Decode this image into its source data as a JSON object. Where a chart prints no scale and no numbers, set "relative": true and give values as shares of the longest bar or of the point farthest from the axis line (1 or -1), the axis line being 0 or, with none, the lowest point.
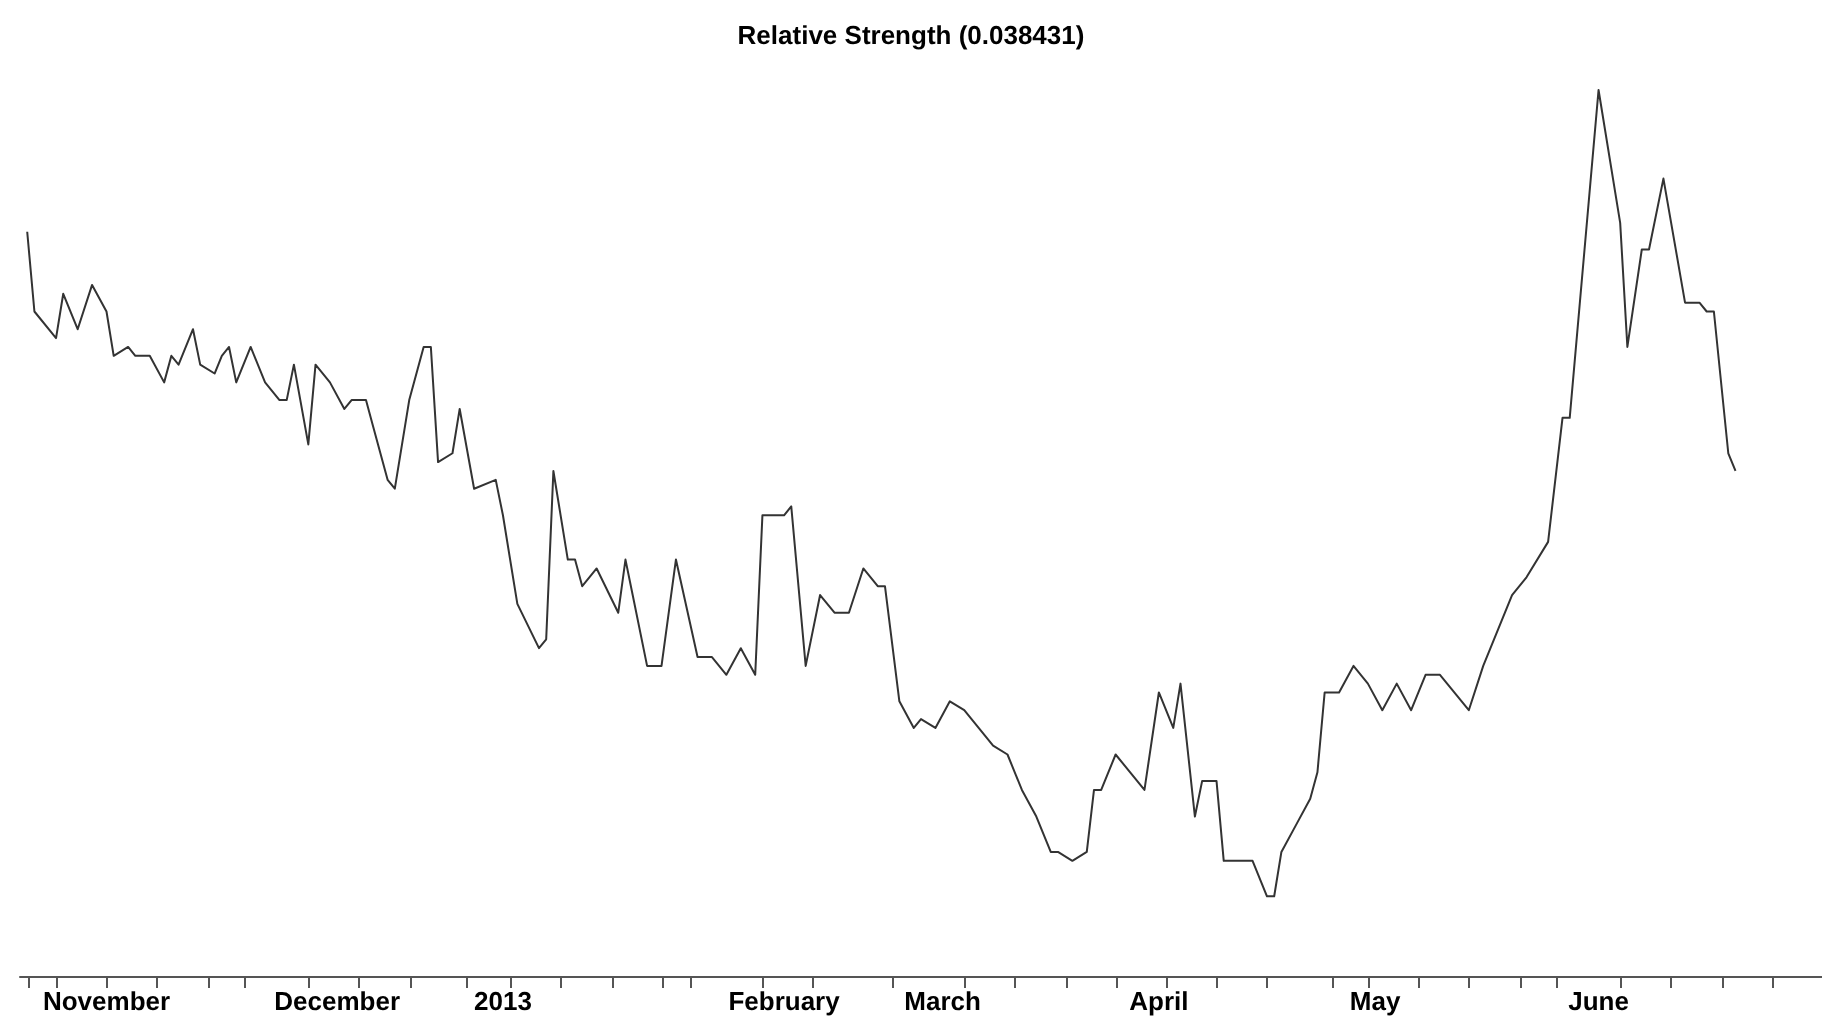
{
  "chart_data": {
    "type": "line",
    "title": "Relative Strength (0.038431)",
    "relative": true,
    "grid": false,
    "xlim": [
      "2012-10-31",
      "2013-07-08"
    ],
    "xticks": [
      {
        "value": "2012-11-12",
        "label": "November"
      },
      {
        "value": "2012-12-14",
        "label": "December"
      },
      {
        "value": "2013-01-06",
        "label": "2013"
      },
      {
        "value": "2013-02-14",
        "label": "February"
      },
      {
        "value": "2013-03-08",
        "label": "March"
      },
      {
        "value": "2013-04-07",
        "label": "April"
      },
      {
        "value": "2013-05-07",
        "label": "May"
      },
      {
        "value": "2013-06-07",
        "label": "June"
      },
      {
        "value": "2012-11-01",
        "label": null
      },
      {
        "value": "2012-11-05",
        "label": null
      },
      {
        "value": "2012-11-12",
        "label": null
      },
      {
        "value": "2012-11-19",
        "label": null
      },
      {
        "value": "2012-11-26",
        "label": null
      },
      {
        "value": "2012-12-01",
        "label": null
      },
      {
        "value": "2012-12-10",
        "label": null
      },
      {
        "value": "2012-12-17",
        "label": null
      },
      {
        "value": "2012-12-24",
        "label": null
      },
      {
        "value": "2013-01-01",
        "label": null
      },
      {
        "value": "2013-01-07",
        "label": null
      },
      {
        "value": "2013-01-14",
        "label": null
      },
      {
        "value": "2013-01-21",
        "label": null
      },
      {
        "value": "2013-01-28",
        "label": null
      },
      {
        "value": "2013-02-01",
        "label": null
      },
      {
        "value": "2013-02-11",
        "label": null
      },
      {
        "value": "2013-02-18",
        "label": null
      },
      {
        "value": "2013-03-01",
        "label": null
      },
      {
        "value": "2013-03-11",
        "label": null
      },
      {
        "value": "2013-03-18",
        "label": null
      },
      {
        "value": "2013-03-25",
        "label": null
      },
      {
        "value": "2013-04-01",
        "label": null
      },
      {
        "value": "2013-04-08",
        "label": null
      },
      {
        "value": "2013-04-15",
        "label": null
      },
      {
        "value": "2013-04-22",
        "label": null
      },
      {
        "value": "2013-05-01",
        "label": null
      },
      {
        "value": "2013-05-06",
        "label": null
      },
      {
        "value": "2013-05-13",
        "label": null
      },
      {
        "value": "2013-05-20",
        "label": null
      },
      {
        "value": "2013-05-27",
        "label": null
      },
      {
        "value": "2013-06-01",
        "label": null
      },
      {
        "value": "2013-06-10",
        "label": null
      },
      {
        "value": "2013-06-17",
        "label": null
      },
      {
        "value": "2013-06-24",
        "label": null
      },
      {
        "value": "2013-07-01",
        "label": null
      }
    ],
    "series": [
      {
        "color": "#333333",
        "x": [
          "2012-11-01",
          "2012-11-02",
          "2012-11-05",
          "2012-11-06",
          "2012-11-08",
          "2012-11-10",
          "2012-11-12",
          "2012-11-13",
          "2012-11-15",
          "2012-11-16",
          "2012-11-18",
          "2012-11-20",
          "2012-11-21",
          "2012-11-22",
          "2012-11-24",
          "2012-11-25",
          "2012-11-27",
          "2012-11-28",
          "2012-11-29",
          "2012-11-30",
          "2012-12-02",
          "2012-12-04",
          "2012-12-06",
          "2012-12-07",
          "2012-12-08",
          "2012-12-10",
          "2012-12-11",
          "2012-12-13",
          "2012-12-15",
          "2012-12-16",
          "2012-12-18",
          "2012-12-19",
          "2012-12-21",
          "2012-12-22",
          "2012-12-24",
          "2012-12-26",
          "2012-12-27",
          "2012-12-28",
          "2012-12-30",
          "2012-12-31",
          "2013-01-02",
          "2013-01-05",
          "2013-01-06",
          "2013-01-08",
          "2013-01-11",
          "2013-01-12",
          "2013-01-13",
          "2013-01-15",
          "2013-01-16",
          "2013-01-17",
          "2013-01-19",
          "2013-01-22",
          "2013-01-23",
          "2013-01-24",
          "2013-01-26",
          "2013-01-27",
          "2013-01-28",
          "2013-01-30",
          "2013-02-02",
          "2013-02-04",
          "2013-02-06",
          "2013-02-08",
          "2013-02-10",
          "2013-02-11",
          "2013-02-14",
          "2013-02-15",
          "2013-02-17",
          "2013-02-19",
          "2013-02-21",
          "2013-02-23",
          "2013-02-25",
          "2013-02-27",
          "2013-02-28",
          "2013-03-02",
          "2013-03-04",
          "2013-03-05",
          "2013-03-07",
          "2013-03-09",
          "2013-03-11",
          "2013-03-13",
          "2013-03-15",
          "2013-03-17",
          "2013-03-19",
          "2013-03-21",
          "2013-03-23",
          "2013-03-24",
          "2013-03-26",
          "2013-03-28",
          "2013-03-29",
          "2013-03-30",
          "2013-04-01",
          "2013-04-05",
          "2013-04-07",
          "2013-04-09",
          "2013-04-10",
          "2013-04-12",
          "2013-04-13",
          "2013-04-15",
          "2013-04-16",
          "2013-04-20",
          "2013-04-22",
          "2013-04-23",
          "2013-04-24",
          "2013-04-26",
          "2013-04-28",
          "2013-04-29",
          "2013-04-30",
          "2013-05-02",
          "2013-05-04",
          "2013-05-06",
          "2013-05-08",
          "2013-05-10",
          "2013-05-12",
          "2013-05-14",
          "2013-05-16",
          "2013-05-20",
          "2013-05-22",
          "2013-05-26",
          "2013-05-28",
          "2013-05-31",
          "2013-06-02",
          "2013-06-03",
          "2013-06-07",
          "2013-06-10",
          "2013-06-11",
          "2013-06-13",
          "2013-06-14",
          "2013-06-16",
          "2013-06-19",
          "2013-06-21",
          "2013-06-22",
          "2013-06-23",
          "2013-06-25",
          "2013-06-26"
        ],
        "values": [
          0.84,
          0.75,
          0.72,
          0.77,
          0.73,
          0.78,
          0.75,
          0.7,
          0.71,
          0.7,
          0.7,
          0.67,
          0.7,
          0.69,
          0.73,
          0.69,
          0.68,
          0.7,
          0.71,
          0.67,
          0.71,
          0.67,
          0.65,
          0.65,
          0.69,
          0.6,
          0.69,
          0.67,
          0.64,
          0.65,
          0.65,
          0.62,
          0.56,
          0.55,
          0.65,
          0.71,
          0.71,
          0.58,
          0.59,
          0.64,
          0.55,
          0.56,
          0.52,
          0.42,
          0.37,
          0.38,
          0.57,
          0.47,
          0.47,
          0.44,
          0.46,
          0.41,
          0.47,
          0.43,
          0.35,
          0.35,
          0.35,
          0.47,
          0.36,
          0.36,
          0.34,
          0.37,
          0.34,
          0.52,
          0.52,
          0.53,
          0.35,
          0.43,
          0.41,
          0.41,
          0.46,
          0.44,
          0.44,
          0.31,
          0.28,
          0.29,
          0.28,
          0.31,
          0.3,
          0.28,
          0.26,
          0.25,
          0.21,
          0.18,
          0.14,
          0.14,
          0.13,
          0.14,
          0.21,
          0.21,
          0.25,
          0.21,
          0.32,
          0.28,
          0.33,
          0.18,
          0.22,
          0.22,
          0.13,
          0.13,
          0.09,
          0.09,
          0.14,
          0.17,
          0.2,
          0.23,
          0.32,
          0.32,
          0.35,
          0.33,
          0.3,
          0.33,
          0.3,
          0.34,
          0.34,
          0.3,
          0.35,
          0.43,
          0.45,
          0.49,
          0.63,
          0.63,
          1.0,
          0.85,
          0.71,
          0.82,
          0.82,
          0.9,
          0.76,
          0.76,
          0.75,
          0.75,
          0.59,
          0.57
        ]
      }
    ]
  }
}
